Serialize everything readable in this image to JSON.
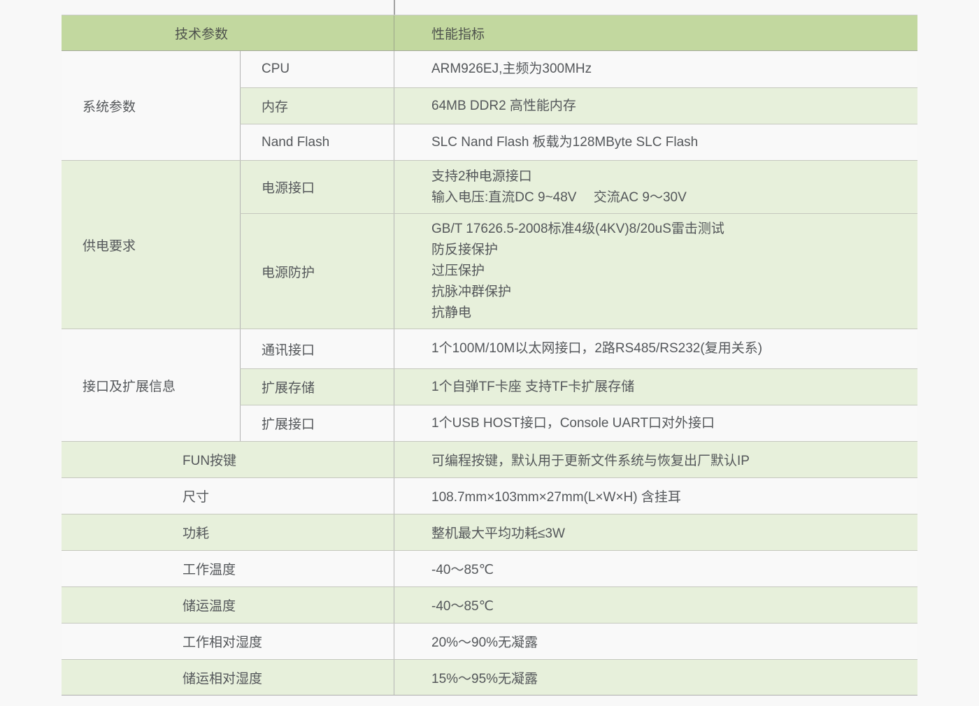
{
  "palette": {
    "header_green": "#c2d89f",
    "row_green": "#e7f0db",
    "row_white": "#f9f9f9",
    "page_background": "#f8f8f8"
  },
  "table": {
    "header": {
      "param_col": "技术参数",
      "value_col": "性能指标"
    },
    "groups": [
      {
        "name": "系统参数",
        "rows": [
          {
            "label": "CPU",
            "value": "ARM926EJ,主频为300MHz"
          },
          {
            "label": "内存",
            "value": "64MB DDR2 高性能内存"
          },
          {
            "label": "Nand Flash",
            "value": "SLC Nand Flash 板载为128MByte SLC Flash"
          }
        ]
      },
      {
        "name": "供电要求",
        "rows": [
          {
            "label": "电源接口",
            "lines": [
              "支持2种电源接口",
              "输入电压:直流DC 9~48V　 交流AC 9～30V"
            ]
          },
          {
            "label": "电源防护",
            "lines": [
              "GB/T 17626.5-2008标准4级(4KV)8/20uS雷击测试",
              "防反接保护",
              "过压保护",
              "抗脉冲群保护",
              "抗静电"
            ]
          }
        ]
      },
      {
        "name": "接口及扩展信息",
        "rows": [
          {
            "label": "通讯接口",
            "value": "1个100M/10M以太网接口，2路RS485/RS232(复用关系)"
          },
          {
            "label": "扩展存储",
            "value": "1个自弹TF卡座 支持TF卡扩展存储"
          },
          {
            "label": "扩展接口",
            "value": "1个USB HOST接口，Console UART口对外接口"
          }
        ]
      }
    ],
    "simple_rows": [
      {
        "label": "FUN按键",
        "value": "可编程按键，默认用于更新文件系统与恢复出厂默认IP"
      },
      {
        "label": "尺寸",
        "value": "108.7mm×103mm×27mm(L×W×H) 含挂耳"
      },
      {
        "label": "功耗",
        "value": "整机最大平均功耗≤3W"
      },
      {
        "label": "工作温度",
        "value": "-40～85℃"
      },
      {
        "label": "储运温度",
        "value": "-40～85℃"
      },
      {
        "label": "工作相对湿度",
        "value": "20%～90%无凝露"
      },
      {
        "label": "储运相对湿度",
        "value": "15%～95%无凝露"
      }
    ]
  }
}
